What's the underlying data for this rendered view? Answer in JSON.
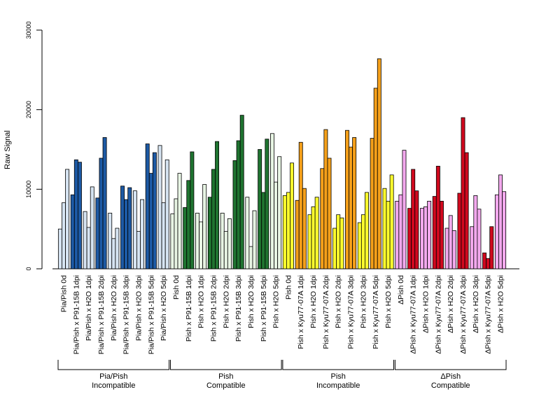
{
  "chart_data": {
    "type": "bar",
    "title": "",
    "xlabel": "",
    "ylabel": "Raw Signal",
    "ylim": [
      0,
      30000
    ],
    "yticks": [
      0,
      10000,
      20000,
      30000
    ],
    "grid": false,
    "legend": "none",
    "categories": [
      "Pia/Pish 0d",
      "Pia/Pish x P91-15B 1dpi",
      "Pia/Pish x H2O 1dpi",
      "Pia/Pish x P91-15B 2dpi",
      "Pia/Pish x H2O 2dpi",
      "Pia/Pish x P91-15B 3dpi",
      "Pia/Pish x H2O 3dpi",
      "Pia/Pish x P91-15B 5dpi",
      "Pia/Pish x H2O 5dpi",
      "Pish 0d",
      "Pish x P91-15B 1dpi",
      "Pish x H2O 1dpi",
      "Pish x P91-15B 2dpi",
      "Pish x H2O 2dpi",
      "Pish x P91-15B 3dpi",
      "Pish x H2O 3dpi",
      "Pish x P91-15B 5dpi",
      "Pish x H2O 5dpi",
      "Pish 0d",
      "Pish x Kyu77-07A 1dpi",
      "Pish x H2O 1dpi",
      "Pish x Kyu77-07A 2dpi",
      "Pish x H2O 2dpi",
      "Pish x Kyu77-07A 3dpi",
      "Pish x H2O 3dpi",
      "Pish x Kyu77-07A 5dpi",
      "Pish x H2O 5dpi",
      "ΔPish 0d",
      "ΔPish x Kyu77-07A 1dpi",
      "ΔPish x H2O 1dpi",
      "ΔPish x Kyu77-07A 2dpi",
      "ΔPish x H2O 2dpi",
      "ΔPish x Kyu77-07A 3dpi",
      "ΔPish x H2O 3dpi",
      "ΔPish x Kyu77-07A 5dpi",
      "ΔPish x H2O 5dpi"
    ],
    "values": [
      [
        5000,
        8300,
        12500
      ],
      [
        9300,
        13700,
        13400
      ],
      [
        7200,
        5200,
        10300
      ],
      [
        8900,
        13900,
        16500
      ],
      [
        7000,
        3800,
        5100
      ],
      [
        10400,
        8700,
        10200
      ],
      [
        9800,
        4700,
        8700
      ],
      [
        15700,
        12000,
        14600
      ],
      [
        15500,
        8300,
        13700
      ],
      [
        6900,
        8800,
        12000
      ],
      [
        7700,
        11100,
        14700
      ],
      [
        7000,
        5900,
        10600
      ],
      [
        9000,
        12500,
        16000
      ],
      [
        7000,
        4700,
        6300
      ],
      [
        13600,
        16100,
        19300
      ],
      [
        9000,
        2800,
        7300
      ],
      [
        15000,
        9600,
        16300
      ],
      [
        17000,
        10900,
        14100
      ],
      [
        9200,
        9600,
        13300
      ],
      [
        8600,
        15900,
        10100
      ],
      [
        6800,
        7800,
        9000
      ],
      [
        12600,
        17500,
        13900
      ],
      [
        5100,
        6800,
        6400
      ],
      [
        17400,
        15300,
        16500
      ],
      [
        5800,
        6800,
        9600
      ],
      [
        16400,
        22700,
        26400
      ],
      [
        10100,
        8500,
        11800
      ],
      [
        8500,
        9300,
        14900
      ],
      [
        7600,
        12500,
        9800
      ],
      [
        7600,
        7800,
        8500
      ],
      [
        9100,
        12900,
        8500
      ],
      [
        5100,
        6700,
        4800
      ],
      [
        9500,
        19000,
        14600
      ],
      [
        5300,
        9200,
        7500
      ],
      [
        2000,
        1300,
        5300
      ],
      [
        9300,
        11800,
        9700
      ]
    ],
    "bar_colors": {
      "Pia/Pish": [
        "#D6E4F2",
        "#1D5AA5"
      ],
      "Pish Compatible": [
        "#E8F5E4",
        "#1F7430"
      ],
      "Pish Incompatible": [
        "#FFFF2E",
        "#F5A01A"
      ],
      "ΔPish": [
        "#F3A9EE",
        "#D0091E"
      ]
    },
    "group_pattern": [
      "light",
      "dark",
      "light",
      "dark",
      "light",
      "dark",
      "light",
      "dark",
      "light"
    ],
    "group_labels": [
      [
        "Pia/Pish",
        "Incompatible"
      ],
      [
        "Pish",
        "Compatible"
      ],
      [
        "Pish",
        "Incompatible"
      ],
      [
        "ΔPish",
        "Compatible"
      ]
    ]
  }
}
